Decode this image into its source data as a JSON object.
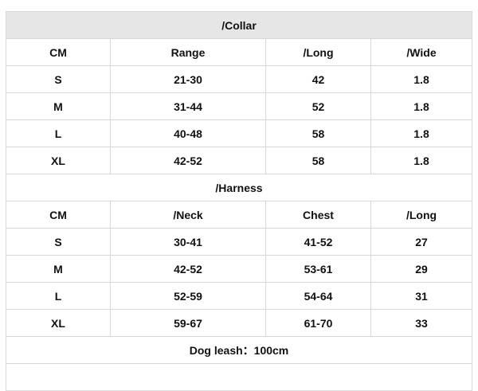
{
  "collar": {
    "title": "/Collar",
    "headers": [
      "CM",
      "Range",
      "/Long",
      "/Wide"
    ],
    "rows": [
      [
        "S",
        "21-30",
        "42",
        "1.8"
      ],
      [
        "M",
        "31-44",
        "52",
        "1.8"
      ],
      [
        "L",
        "40-48",
        "58",
        "1.8"
      ],
      [
        "XL",
        "42-52",
        "58",
        "1.8"
      ]
    ]
  },
  "harness": {
    "title": "/Harness",
    "headers": [
      "CM",
      "/Neck",
      "Chest",
      "/Long"
    ],
    "rows": [
      [
        "S",
        "30-41",
        "41-52",
        "27"
      ],
      [
        "M",
        "42-52",
        "53-61",
        "29"
      ],
      [
        "L",
        "52-59",
        "54-64",
        "31"
      ],
      [
        "XL",
        "59-67",
        "61-70",
        "33"
      ]
    ]
  },
  "leash": "Dog leash：100cm"
}
